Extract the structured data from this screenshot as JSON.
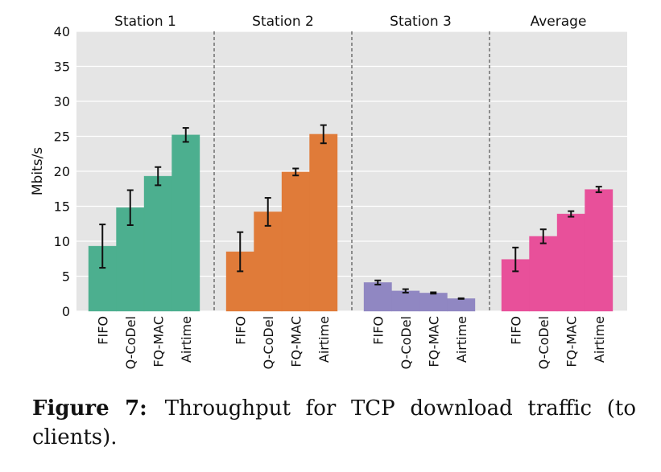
{
  "chart_data": {
    "type": "bar",
    "ylabel": "Mbits/s",
    "ylim": [
      0,
      40
    ],
    "yticks": [
      0,
      5,
      10,
      15,
      20,
      25,
      30,
      35,
      40
    ],
    "grid": true,
    "categories": [
      "FIFO",
      "Q-CoDel",
      "FQ-MAC",
      "Airtime"
    ],
    "panels": [
      {
        "name": "Station 1",
        "color": "#4caf8f",
        "values": [
          9.3,
          14.8,
          19.3,
          25.2
        ],
        "errors": [
          3.1,
          2.5,
          1.3,
          1.0
        ]
      },
      {
        "name": "Station 2",
        "color": "#e07b39",
        "values": [
          8.5,
          14.2,
          19.9,
          25.3
        ],
        "errors": [
          2.8,
          2.0,
          0.5,
          1.3
        ]
      },
      {
        "name": "Station 3",
        "color": "#9087c2",
        "values": [
          4.1,
          2.9,
          2.6,
          1.8
        ],
        "errors": [
          0.3,
          0.25,
          0.1,
          0.05
        ]
      },
      {
        "name": "Average",
        "color": "#e8509a",
        "values": [
          7.4,
          10.7,
          13.9,
          17.4
        ],
        "errors": [
          1.7,
          1.0,
          0.4,
          0.4
        ]
      }
    ]
  },
  "caption": {
    "label": "Figure 7:",
    "text": "Throughput for TCP download traffic (to clients)."
  }
}
